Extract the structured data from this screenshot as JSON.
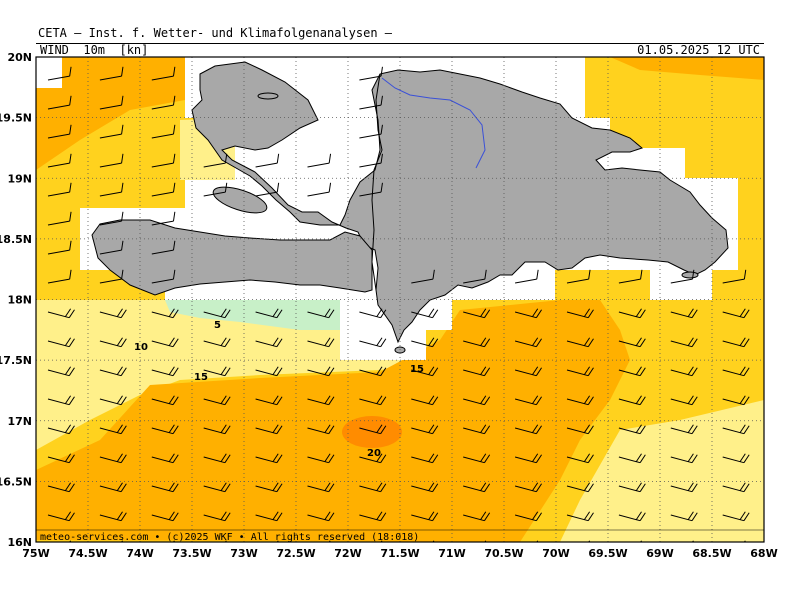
{
  "header": {
    "title": "CETA — Inst. f. Wetter- und Klimafolgenanalysen —",
    "field": "WIND  10m  [kn]",
    "valid_time": "01.05.2025 12 UTC"
  },
  "map": {
    "lon_range": [
      -75,
      -68
    ],
    "lat_range": [
      16,
      20
    ],
    "x_ticks": [
      "75W",
      "74.5W",
      "74W",
      "73.5W",
      "73W",
      "72.5W",
      "72W",
      "71.5W",
      "71W",
      "70.5W",
      "70W",
      "69.5W",
      "69W",
      "68.5W",
      "68W"
    ],
    "y_ticks": [
      "16N",
      "16.5N",
      "17N",
      "17.5N",
      "18N",
      "18.5N",
      "19N",
      "19.5N",
      "20N"
    ],
    "contour_labels": [
      "5",
      "10",
      "15",
      "15",
      "20"
    ],
    "colors": {
      "calm": "#ffffff",
      "band_5": "#c8f0c8",
      "band_10": "#fff08a",
      "band_15": "#ffd21e",
      "band_20": "#ffb000",
      "band_25": "#ff8c00",
      "land": "#a8a8a8",
      "river": "#3a50d8"
    },
    "copyright": "meteo-services.com  • (c)2025 WKF • All rights reserved (18:018)"
  }
}
